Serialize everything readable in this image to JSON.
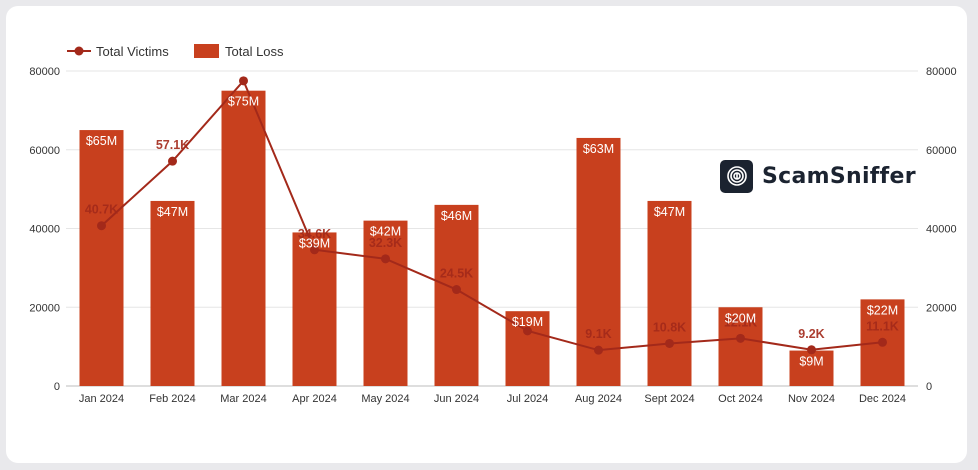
{
  "chart_data": {
    "type": "bar",
    "categories": [
      "Jan 2024",
      "Feb 2024",
      "Mar 2024",
      "Apr 2024",
      "May 2024",
      "Jun 2024",
      "Jul 2024",
      "Aug 2024",
      "Sept 2024",
      "Oct 2024",
      "Nov 2024",
      "Dec 2024"
    ],
    "series": [
      {
        "name": "Total Loss",
        "type": "bar",
        "axis": "left",
        "values": [
          65000,
          47000,
          75000,
          39000,
          42000,
          46000,
          19000,
          63000,
          47000,
          20000,
          9000,
          22000
        ],
        "labels": [
          "$65M",
          "$47M",
          "$75M",
          "$39M",
          "$42M",
          "$46M",
          "$19M",
          "$63M",
          "$47M",
          "$20M",
          "$9M",
          "$22M"
        ],
        "color": "#c8401e"
      },
      {
        "name": "Total Victims",
        "type": "line",
        "axis": "right",
        "values": [
          40700,
          57100,
          77500,
          34600,
          32300,
          24500,
          14000,
          9100,
          10800,
          12100,
          9200,
          11100
        ],
        "labels": [
          "40.7K",
          "57.1K",
          "",
          "34.6K",
          "32.3K",
          "24.5K",
          "",
          "9.1K",
          "10.8K",
          "12.1K",
          "9.2K",
          "11.1K"
        ],
        "color": "#a3291a"
      }
    ],
    "y_left": {
      "ticks": [
        "0",
        "20000",
        "40000",
        "60000",
        "80000"
      ],
      "range": [
        0,
        80000
      ]
    },
    "y_right": {
      "ticks": [
        "0",
        "20000",
        "40000",
        "60000",
        "80000"
      ],
      "range": [
        0,
        80000
      ]
    },
    "legend_position": "top-left",
    "grid": true
  },
  "brand": {
    "name": "ScamSniffer",
    "icon": "fingerprint-icon"
  }
}
